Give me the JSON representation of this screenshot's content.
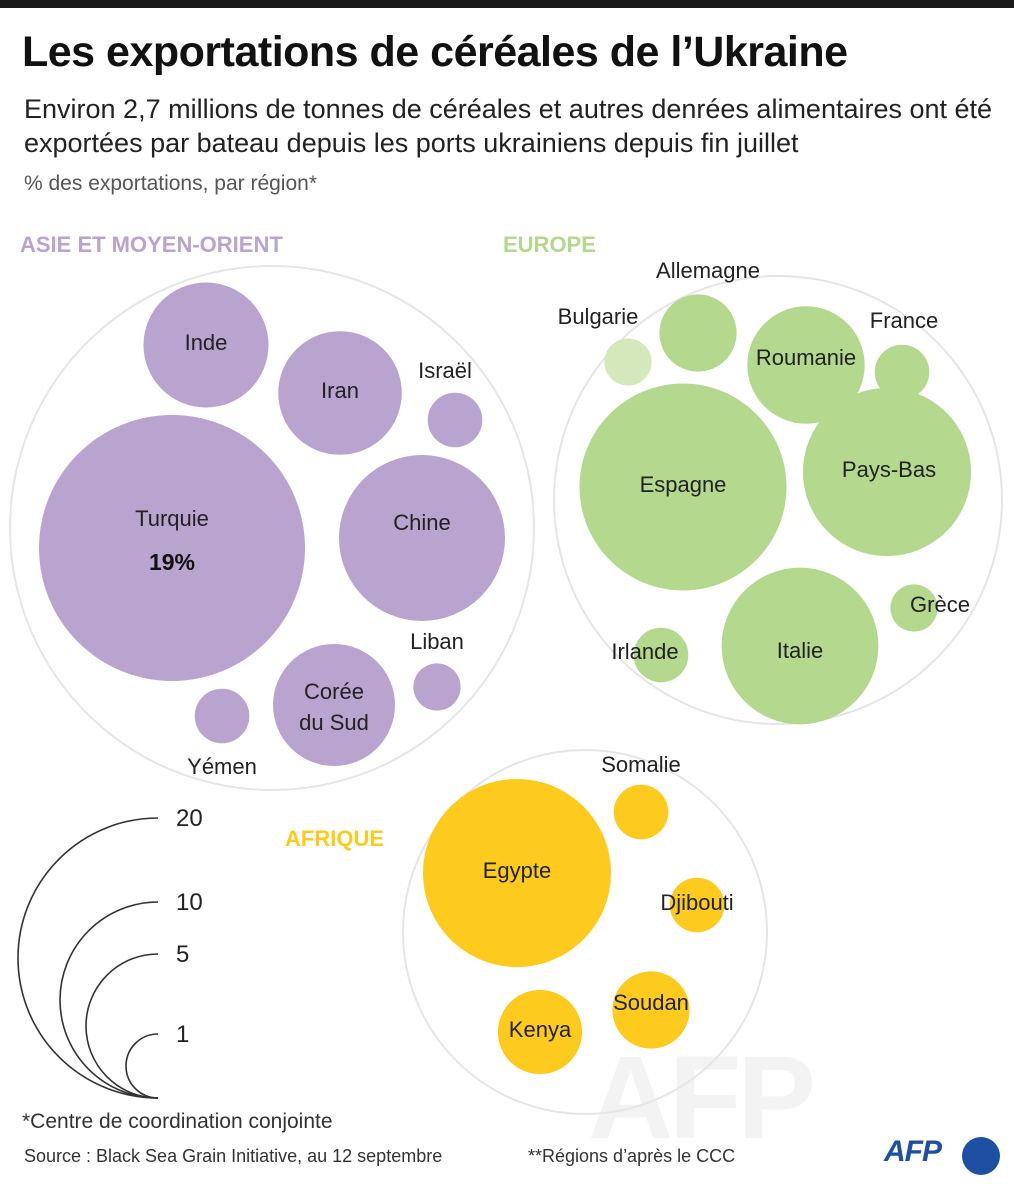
{
  "title": "Les exportations de céréales de l’Ukraine",
  "subtitle": "Environ 2,7 millions de tonnes de céréales et autres denrées alimentaires ont été exportées par bateau depuis les ports ukrainiens depuis fin juillet",
  "unit_label": "% des exportations, par région*",
  "footnote": "*Centre de coordination conjointe",
  "source": "Source : Black Sea Grain Initiative, au 12 septembre",
  "notes2": "**Régions d’après le CCC",
  "logo": "AFP",
  "watermark": "AFP",
  "colors": {
    "asia": "#b9a3cf",
    "europe": "#b5d88f",
    "europe_light": "#d4e8bc",
    "africa": "#fccb1e",
    "group_border": "#e6e6e6"
  },
  "chart_data": {
    "type": "bubble",
    "title": "Les exportations de céréales de l’Ukraine",
    "measure": "% des exportations, par région",
    "groups": [
      {
        "name": "ASIE ET MOYEN-ORIENT",
        "color": "#b9a3cf",
        "items": [
          {
            "label": "Turquie",
            "value": 19,
            "value_label": "19%"
          },
          {
            "label": "Chine",
            "value": 7.4
          },
          {
            "label": "Inde",
            "value": 4.2
          },
          {
            "label": "Iran",
            "value": 4.1
          },
          {
            "label": "Corée du Sud",
            "value": 4.0
          },
          {
            "label": "Israël",
            "value": 0.8
          },
          {
            "label": "Liban",
            "value": 0.6
          },
          {
            "label": "Yémen",
            "value": 0.8
          }
        ]
      },
      {
        "name": "EUROPE",
        "color": "#b5d88f",
        "items": [
          {
            "label": "Espagne",
            "value": 11.5
          },
          {
            "label": "Pays-Bas",
            "value": 7.6
          },
          {
            "label": "Italie",
            "value": 6.6
          },
          {
            "label": "Roumanie",
            "value": 3.7
          },
          {
            "label": "Allemagne",
            "value": 1.6
          },
          {
            "label": "France",
            "value": 0.8
          },
          {
            "label": "Bulgarie",
            "value": 0.6
          },
          {
            "label": "Irlande",
            "value": 0.8
          },
          {
            "label": "Grèce",
            "value": 0.6
          }
        ]
      },
      {
        "name": "AFRIQUE",
        "color": "#fccb1e",
        "items": [
          {
            "label": "Egypte",
            "value": 9.5
          },
          {
            "label": "Soudan",
            "value": 1.6
          },
          {
            "label": "Kenya",
            "value": 1.9
          },
          {
            "label": "Somalie",
            "value": 0.8
          },
          {
            "label": "Djibouti",
            "value": 0.8
          }
        ]
      }
    ],
    "legend": {
      "values": [
        20,
        10,
        5,
        1
      ],
      "labels": [
        "20",
        "10",
        "5",
        "1"
      ]
    }
  }
}
